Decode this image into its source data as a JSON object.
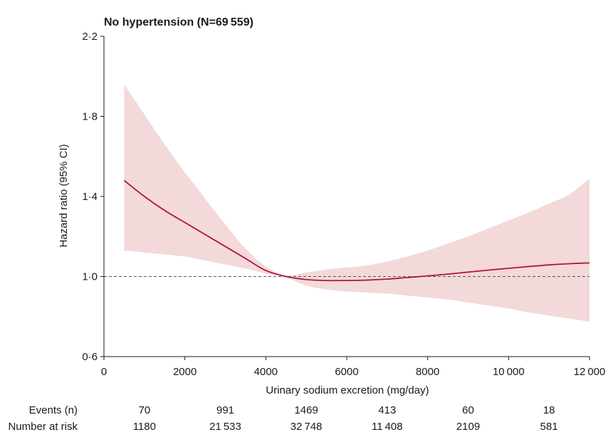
{
  "chart_data": {
    "type": "line",
    "title": "No hypertension (N=69 559)",
    "xlabel": "Urinary sodium excretion (mg/day)",
    "ylabel": "Hazard ratio (95% CI)",
    "xlim": [
      0,
      12000
    ],
    "ylim": [
      0.6,
      2.2
    ],
    "x_ticks": [
      0,
      2000,
      4000,
      6000,
      8000,
      10000,
      12000
    ],
    "x_tick_labels": [
      "0",
      "2000",
      "4000",
      "6000",
      "8000",
      "10 000",
      "12 000"
    ],
    "y_ticks": [
      0.6,
      1.0,
      1.4,
      1.8,
      2.2
    ],
    "y_tick_labels": [
      "0·6",
      "1·0",
      "1·4",
      "1·8",
      "2·2"
    ],
    "reference_line": 1.0,
    "grid": false,
    "colors": {
      "line": "#b0173f",
      "band": "#f3d9d9",
      "reference": "#555555"
    },
    "series": [
      {
        "hazard_ratio": [
          {
            "x": 500,
            "y": 1.48
          },
          {
            "x": 1000,
            "y": 1.4
          },
          {
            "x": 1500,
            "y": 1.33
          },
          {
            "x": 2000,
            "y": 1.27
          },
          {
            "x": 2500,
            "y": 1.21
          },
          {
            "x": 3000,
            "y": 1.15
          },
          {
            "x": 3500,
            "y": 1.09
          },
          {
            "x": 4000,
            "y": 1.03
          },
          {
            "x": 4500,
            "y": 1.0
          },
          {
            "x": 5000,
            "y": 0.985
          },
          {
            "x": 5500,
            "y": 0.98
          },
          {
            "x": 6000,
            "y": 0.98
          },
          {
            "x": 6500,
            "y": 0.982
          },
          {
            "x": 7000,
            "y": 0.987
          },
          {
            "x": 7500,
            "y": 0.995
          },
          {
            "x": 8000,
            "y": 1.003
          },
          {
            "x": 8500,
            "y": 1.012
          },
          {
            "x": 9000,
            "y": 1.022
          },
          {
            "x": 9500,
            "y": 1.032
          },
          {
            "x": 10000,
            "y": 1.041
          },
          {
            "x": 10500,
            "y": 1.05
          },
          {
            "x": 11000,
            "y": 1.058
          },
          {
            "x": 11500,
            "y": 1.064
          },
          {
            "x": 12000,
            "y": 1.068
          }
        ],
        "ci_upper": [
          {
            "x": 500,
            "y": 1.96
          },
          {
            "x": 1000,
            "y": 1.81
          },
          {
            "x": 1500,
            "y": 1.66
          },
          {
            "x": 2000,
            "y": 1.52
          },
          {
            "x": 2500,
            "y": 1.39
          },
          {
            "x": 3000,
            "y": 1.26
          },
          {
            "x": 3500,
            "y": 1.14
          },
          {
            "x": 4000,
            "y": 1.05
          },
          {
            "x": 4500,
            "y": 1.005
          },
          {
            "x": 5000,
            "y": 1.02
          },
          {
            "x": 5500,
            "y": 1.035
          },
          {
            "x": 6000,
            "y": 1.045
          },
          {
            "x": 6500,
            "y": 1.055
          },
          {
            "x": 7000,
            "y": 1.075
          },
          {
            "x": 7500,
            "y": 1.1
          },
          {
            "x": 8000,
            "y": 1.13
          },
          {
            "x": 8500,
            "y": 1.165
          },
          {
            "x": 9000,
            "y": 1.2
          },
          {
            "x": 9500,
            "y": 1.24
          },
          {
            "x": 10000,
            "y": 1.28
          },
          {
            "x": 10500,
            "y": 1.32
          },
          {
            "x": 11000,
            "y": 1.365
          },
          {
            "x": 11500,
            "y": 1.41
          },
          {
            "x": 12000,
            "y": 1.49
          }
        ],
        "ci_lower": [
          {
            "x": 500,
            "y": 1.13
          },
          {
            "x": 1000,
            "y": 1.12
          },
          {
            "x": 1500,
            "y": 1.11
          },
          {
            "x": 2000,
            "y": 1.1
          },
          {
            "x": 2500,
            "y": 1.08
          },
          {
            "x": 3000,
            "y": 1.06
          },
          {
            "x": 3500,
            "y": 1.04
          },
          {
            "x": 4000,
            "y": 1.015
          },
          {
            "x": 4500,
            "y": 0.995
          },
          {
            "x": 5000,
            "y": 0.955
          },
          {
            "x": 5500,
            "y": 0.935
          },
          {
            "x": 6000,
            "y": 0.925
          },
          {
            "x": 6500,
            "y": 0.92
          },
          {
            "x": 7000,
            "y": 0.915
          },
          {
            "x": 7500,
            "y": 0.905
          },
          {
            "x": 8000,
            "y": 0.895
          },
          {
            "x": 8500,
            "y": 0.885
          },
          {
            "x": 9000,
            "y": 0.87
          },
          {
            "x": 9500,
            "y": 0.855
          },
          {
            "x": 10000,
            "y": 0.84
          },
          {
            "x": 10500,
            "y": 0.82
          },
          {
            "x": 11000,
            "y": 0.805
          },
          {
            "x": 11500,
            "y": 0.79
          },
          {
            "x": 12000,
            "y": 0.775
          }
        ]
      }
    ],
    "risk_table": {
      "columns_x": [
        1000,
        3000,
        5000,
        7000,
        9000,
        11000
      ],
      "rows": [
        {
          "label": "Events (n)",
          "values": [
            "70",
            "991",
            "1469",
            "413",
            "60",
            "18"
          ]
        },
        {
          "label": "Number at risk",
          "values": [
            "1180",
            "21 533",
            "32 748",
            "11 408",
            "2109",
            "581"
          ]
        }
      ]
    }
  }
}
